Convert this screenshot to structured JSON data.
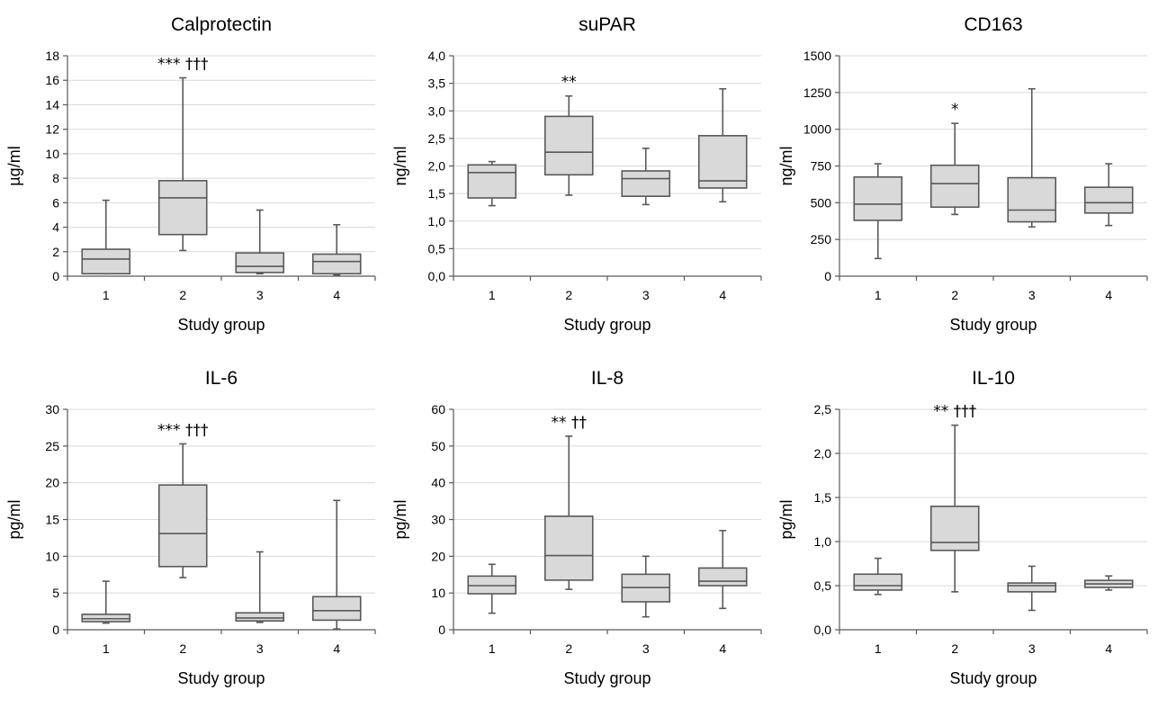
{
  "chart_data": [
    {
      "type": "boxplot",
      "title": "Calprotectin",
      "xlabel": "Study group",
      "ylabel": "µg/ml",
      "ylim": [
        0,
        18
      ],
      "yticks": [
        0,
        2,
        4,
        6,
        8,
        10,
        12,
        14,
        16,
        18
      ],
      "ytick_labels": [
        "0",
        "2",
        "4",
        "6",
        "8",
        "10",
        "12",
        "14",
        "16",
        "18"
      ],
      "categories": [
        "1",
        "2",
        "3",
        "4"
      ],
      "boxes": [
        {
          "min": 0.2,
          "q1": 0.2,
          "median": 1.4,
          "q3": 2.2,
          "max": 6.2
        },
        {
          "min": 2.1,
          "q1": 3.4,
          "median": 6.4,
          "q3": 7.8,
          "max": 16.2
        },
        {
          "min": 0.2,
          "q1": 0.3,
          "median": 0.8,
          "q3": 1.9,
          "max": 5.4
        },
        {
          "min": 0.1,
          "q1": 0.2,
          "median": 1.2,
          "q3": 1.8,
          "max": 4.2
        }
      ],
      "annotations": [
        {
          "category": "2",
          "text": "*** †††"
        }
      ],
      "grid": true,
      "legend": "none"
    },
    {
      "type": "boxplot",
      "title": "suPAR",
      "xlabel": "Study group",
      "ylabel": "ng/ml",
      "ylim": [
        0,
        4
      ],
      "yticks": [
        0,
        0.5,
        1,
        1.5,
        2,
        2.5,
        3,
        3.5,
        4
      ],
      "ytick_labels": [
        "0,0",
        "0,5",
        "1,0",
        "1,5",
        "2,0",
        "2,5",
        "3,0",
        "3,5",
        "4,0"
      ],
      "categories": [
        "1",
        "2",
        "3",
        "4"
      ],
      "boxes": [
        {
          "min": 1.28,
          "q1": 1.42,
          "median": 1.88,
          "q3": 2.02,
          "max": 2.08
        },
        {
          "min": 1.47,
          "q1": 1.84,
          "median": 2.25,
          "q3": 2.9,
          "max": 3.27
        },
        {
          "min": 1.3,
          "q1": 1.45,
          "median": 1.77,
          "q3": 1.91,
          "max": 2.32
        },
        {
          "min": 1.35,
          "q1": 1.6,
          "median": 1.73,
          "q3": 2.55,
          "max": 3.4
        }
      ],
      "annotations": [
        {
          "category": "2",
          "text": "**"
        }
      ],
      "grid": true,
      "legend": "none"
    },
    {
      "type": "boxplot",
      "title": "CD163",
      "xlabel": "Study group",
      "ylabel": "ng/ml",
      "ylim": [
        0,
        1500
      ],
      "yticks": [
        0,
        250,
        500,
        750,
        1000,
        1250,
        1500
      ],
      "ytick_labels": [
        "0",
        "250",
        "500",
        "750",
        "1000",
        "1250",
        "1500"
      ],
      "categories": [
        "1",
        "2",
        "3",
        "4"
      ],
      "boxes": [
        {
          "min": 120,
          "q1": 380,
          "median": 490,
          "q3": 675,
          "max": 765
        },
        {
          "min": 420,
          "q1": 470,
          "median": 630,
          "q3": 755,
          "max": 1040
        },
        {
          "min": 335,
          "q1": 370,
          "median": 450,
          "q3": 670,
          "max": 1275
        },
        {
          "min": 345,
          "q1": 430,
          "median": 500,
          "q3": 605,
          "max": 765
        }
      ],
      "annotations": [
        {
          "category": "2",
          "text": "*"
        }
      ],
      "grid": true,
      "legend": "none"
    },
    {
      "type": "boxplot",
      "title": "IL-6",
      "xlabel": "Study group",
      "ylabel": "pg/ml",
      "ylim": [
        0,
        30
      ],
      "yticks": [
        0,
        5,
        10,
        15,
        20,
        25,
        30
      ],
      "ytick_labels": [
        "0",
        "5",
        "10",
        "15",
        "20",
        "25",
        "30"
      ],
      "categories": [
        "1",
        "2",
        "3",
        "4"
      ],
      "boxes": [
        {
          "min": 0.9,
          "q1": 1.1,
          "median": 1.5,
          "q3": 2.1,
          "max": 6.6
        },
        {
          "min": 7.1,
          "q1": 8.6,
          "median": 13.1,
          "q3": 19.7,
          "max": 25.3
        },
        {
          "min": 1.0,
          "q1": 1.2,
          "median": 1.6,
          "q3": 2.3,
          "max": 10.6
        },
        {
          "min": 0.1,
          "q1": 1.3,
          "median": 2.6,
          "q3": 4.5,
          "max": 17.6
        }
      ],
      "annotations": [
        {
          "category": "2",
          "text": "*** †††"
        }
      ],
      "grid": true,
      "legend": "none"
    },
    {
      "type": "boxplot",
      "title": "IL-8",
      "xlabel": "Study group",
      "ylabel": "pg/ml",
      "ylim": [
        0,
        60
      ],
      "yticks": [
        0,
        10,
        20,
        30,
        40,
        50,
        60
      ],
      "ytick_labels": [
        "0",
        "10",
        "20",
        "30",
        "40",
        "50",
        "60"
      ],
      "categories": [
        "1",
        "2",
        "3",
        "4"
      ],
      "boxes": [
        {
          "min": 4.5,
          "q1": 9.8,
          "median": 12.0,
          "q3": 14.6,
          "max": 17.8
        },
        {
          "min": 11.0,
          "q1": 13.5,
          "median": 20.2,
          "q3": 30.9,
          "max": 52.7
        },
        {
          "min": 3.5,
          "q1": 7.6,
          "median": 11.5,
          "q3": 15.1,
          "max": 20.0
        },
        {
          "min": 5.8,
          "q1": 12.0,
          "median": 13.2,
          "q3": 16.8,
          "max": 27.0
        }
      ],
      "annotations": [
        {
          "category": "2",
          "text": "** ††"
        }
      ],
      "grid": true,
      "legend": "none"
    },
    {
      "type": "boxplot",
      "title": "IL-10",
      "xlabel": "Study group",
      "ylabel": "pg/ml",
      "ylim": [
        0,
        2.5
      ],
      "yticks": [
        0,
        0.5,
        1,
        1.5,
        2,
        2.5
      ],
      "ytick_labels": [
        "0,0",
        "0,5",
        "1,0",
        "1,5",
        "2,0",
        "2,5"
      ],
      "categories": [
        "1",
        "2",
        "3",
        "4"
      ],
      "boxes": [
        {
          "min": 0.4,
          "q1": 0.45,
          "median": 0.5,
          "q3": 0.63,
          "max": 0.81
        },
        {
          "min": 0.43,
          "q1": 0.9,
          "median": 0.99,
          "q3": 1.4,
          "max": 2.32
        },
        {
          "min": 0.22,
          "q1": 0.43,
          "median": 0.5,
          "q3": 0.53,
          "max": 0.72
        },
        {
          "min": 0.45,
          "q1": 0.48,
          "median": 0.52,
          "q3": 0.56,
          "max": 0.61
        }
      ],
      "annotations": [
        {
          "category": "2",
          "text": "** †††"
        }
      ],
      "grid": true,
      "legend": "none"
    }
  ]
}
